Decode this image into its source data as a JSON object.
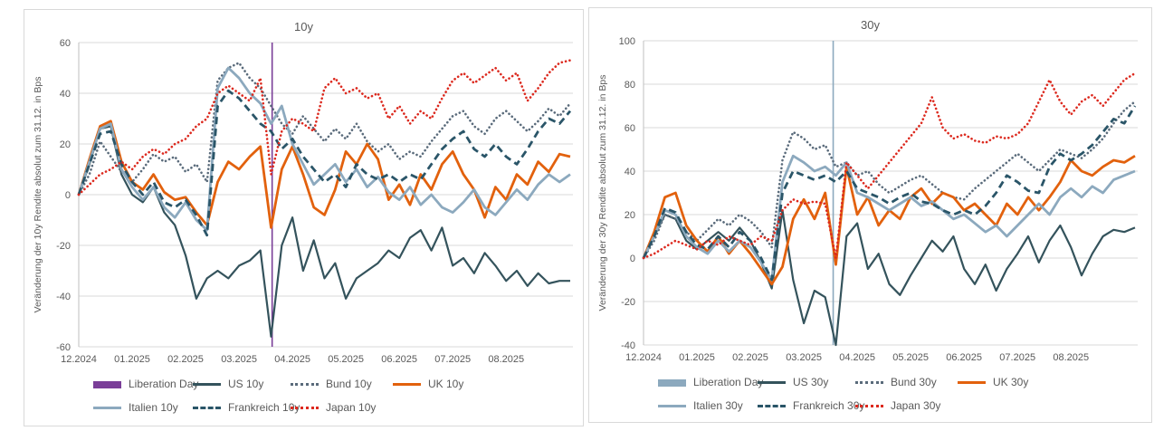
{
  "chart_data": [
    {
      "type": "line",
      "title": "10y",
      "ylabel": "Veränderung der 10y Rendite absolut zum 31.12. in Bps",
      "x_tick_labels": [
        "12.2024",
        "01.2025",
        "02.2025",
        "03.2025",
        "04.2025",
        "05.2025",
        "06.2025",
        "07.2025",
        "08.2025"
      ],
      "y_tick_labels": [
        60,
        40,
        20,
        0,
        -20,
        -40,
        -60
      ],
      "ylim": [
        -60,
        60
      ],
      "x_start": 0,
      "x_step": 0.2,
      "x_max": 9.25,
      "grid": "horizontal",
      "vline": {
        "name": "Liberation Day",
        "x": 3.62,
        "color": "#7A3E98"
      },
      "series": [
        {
          "name": "US 10y",
          "color": "#34535C",
          "style": "solid",
          "width": 2.2,
          "values": [
            0,
            12,
            26,
            27,
            8,
            0,
            -3,
            3,
            -7,
            -12,
            -24,
            -41,
            -33,
            -30,
            -33,
            -28,
            -26,
            -22,
            -56,
            -20,
            -9,
            -30,
            -18,
            -33,
            -27,
            -41,
            -33,
            -30,
            -27,
            -22,
            -25,
            -17,
            -14,
            -22,
            -13,
            -28,
            -25,
            -31,
            -23,
            -28,
            -34,
            -30,
            -36,
            -31,
            -35,
            -34,
            -34
          ]
        },
        {
          "name": "Bund 10y",
          "color": "#5A6B7B",
          "style": "dotted",
          "width": 2.6,
          "values": [
            0,
            8,
            21,
            15,
            9,
            5,
            10,
            16,
            13,
            15,
            9,
            12,
            5,
            45,
            50,
            52,
            46,
            42,
            35,
            28,
            24,
            31,
            26,
            21,
            26,
            22,
            28,
            21,
            17,
            20,
            14,
            17,
            15,
            21,
            26,
            31,
            33,
            27,
            24,
            30,
            33,
            29,
            25,
            29,
            34,
            31,
            36
          ]
        },
        {
          "name": "UK 10y",
          "color": "#E2610D",
          "style": "solid",
          "width": 2.8,
          "values": [
            0,
            14,
            27,
            29,
            13,
            5,
            2,
            8,
            1,
            -2,
            -1,
            -7,
            -12,
            5,
            13,
            10,
            15,
            19,
            -13,
            10,
            19,
            8,
            -5,
            -8,
            2,
            17,
            12,
            20,
            14,
            -2,
            4,
            -4,
            8,
            2,
            12,
            17,
            8,
            2,
            -9,
            3,
            -2,
            8,
            4,
            13,
            9,
            16,
            15
          ]
        },
        {
          "name": "Italien 10y",
          "color": "#8CA9BE",
          "style": "solid",
          "width": 2.8,
          "values": [
            0,
            13,
            26,
            28,
            10,
            3,
            -2,
            3,
            -5,
            -9,
            -3,
            -10,
            -14,
            42,
            50,
            46,
            40,
            36,
            28,
            35,
            20,
            12,
            4,
            8,
            12,
            5,
            10,
            3,
            7,
            1,
            -2,
            3,
            -4,
            0,
            -5,
            -7,
            -3,
            2,
            -5,
            -8,
            -3,
            2,
            -2,
            4,
            8,
            5,
            8
          ]
        },
        {
          "name": "Frankreich 10y",
          "color": "#2A5568",
          "style": "dashed",
          "width": 2.8,
          "values": [
            0,
            12,
            24,
            25,
            12,
            5,
            0,
            5,
            -3,
            -5,
            -2,
            -8,
            -16,
            35,
            41,
            38,
            33,
            28,
            25,
            18,
            22,
            15,
            10,
            5,
            8,
            3,
            12,
            8,
            6,
            8,
            5,
            8,
            6,
            12,
            18,
            22,
            25,
            18,
            15,
            20,
            15,
            12,
            18,
            25,
            30,
            28,
            33
          ]
        },
        {
          "name": "Japan 10y",
          "color": "#DC291E",
          "style": "dotted",
          "width": 2.6,
          "values": [
            0,
            4,
            8,
            10,
            13,
            10,
            15,
            18,
            16,
            20,
            22,
            27,
            30,
            40,
            43,
            40,
            37,
            46,
            8,
            25,
            30,
            28,
            25,
            42,
            46,
            40,
            42,
            38,
            40,
            30,
            35,
            28,
            33,
            30,
            38,
            45,
            48,
            44,
            47,
            50,
            45,
            48,
            37,
            42,
            48,
            52,
            53
          ]
        }
      ],
      "legend": [
        [
          {
            "label": "Liberation Day",
            "color": "#7A3E98",
            "style": "bar"
          },
          {
            "label": "US 10y",
            "color": "#34535C",
            "style": "solid"
          },
          {
            "label": "Bund 10y",
            "color": "#5A6B7B",
            "style": "dotted"
          },
          {
            "label": "UK 10y",
            "color": "#E2610D",
            "style": "solid"
          }
        ],
        [
          {
            "label": "Italien 10y",
            "color": "#8CA9BE",
            "style": "solid"
          },
          {
            "label": "Frankreich 10y",
            "color": "#2A5568",
            "style": "dashed"
          },
          {
            "label": "Japan 10y",
            "color": "#DC291E",
            "style": "dotted"
          }
        ]
      ]
    },
    {
      "type": "line",
      "title": "30y",
      "ylabel": "Veränderung der 30y Rendite absolut zum 31.12. in Bps",
      "x_tick_labels": [
        "12.2024",
        "01.2025",
        "02.2025",
        "03.2025",
        "04.2025",
        "05.2025",
        "06.2025",
        "07.2025",
        "08.2025"
      ],
      "y_tick_labels": [
        100,
        80,
        60,
        40,
        20,
        0,
        -20,
        -40
      ],
      "ylim": [
        -40,
        100
      ],
      "x_start": 0,
      "x_step": 0.2,
      "x_max": 9.25,
      "grid": "horizontal",
      "vline": {
        "name": "Liberation Day",
        "x": 3.55,
        "color": "#8CA9BE"
      },
      "series": [
        {
          "name": "US 30y",
          "color": "#34535C",
          "style": "solid",
          "width": 2.2,
          "values": [
            0,
            10,
            20,
            18,
            8,
            4,
            8,
            12,
            8,
            14,
            8,
            -2,
            -14,
            22,
            -10,
            -30,
            -15,
            -18,
            -40,
            10,
            16,
            -5,
            2,
            -12,
            -17,
            -8,
            0,
            8,
            3,
            10,
            -5,
            -12,
            -3,
            -15,
            -5,
            2,
            10,
            -2,
            8,
            15,
            5,
            -8,
            2,
            10,
            13,
            12,
            14
          ]
        },
        {
          "name": "Bund 30y",
          "color": "#5A6B7B",
          "style": "dotted",
          "width": 2.6,
          "values": [
            0,
            8,
            20,
            18,
            12,
            8,
            13,
            18,
            15,
            20,
            17,
            12,
            5,
            45,
            58,
            55,
            50,
            52,
            42,
            44,
            38,
            40,
            34,
            30,
            33,
            36,
            38,
            34,
            30,
            28,
            27,
            32,
            36,
            40,
            44,
            48,
            44,
            40,
            45,
            50,
            48,
            46,
            50,
            55,
            62,
            68,
            72
          ]
        },
        {
          "name": "UK 30y",
          "color": "#E2610D",
          "style": "solid",
          "width": 2.8,
          "values": [
            0,
            12,
            28,
            30,
            15,
            8,
            3,
            10,
            2,
            8,
            2,
            -5,
            -12,
            -4,
            18,
            27,
            18,
            30,
            -3,
            42,
            20,
            28,
            15,
            22,
            18,
            28,
            32,
            25,
            30,
            28,
            22,
            25,
            20,
            15,
            25,
            20,
            28,
            22,
            28,
            35,
            45,
            40,
            38,
            42,
            45,
            44,
            47
          ]
        },
        {
          "name": "Italien 30y",
          "color": "#8CA9BE",
          "style": "solid",
          "width": 2.8,
          "values": [
            0,
            10,
            22,
            20,
            10,
            5,
            2,
            8,
            3,
            8,
            5,
            -2,
            -10,
            35,
            47,
            44,
            40,
            42,
            38,
            44,
            30,
            28,
            25,
            22,
            25,
            28,
            24,
            26,
            22,
            18,
            20,
            16,
            12,
            15,
            10,
            15,
            20,
            25,
            20,
            28,
            32,
            28,
            33,
            30,
            36,
            38,
            40
          ]
        },
        {
          "name": "Frankreich 30y",
          "color": "#2A5568",
          "style": "dashed",
          "width": 2.8,
          "values": [
            0,
            10,
            23,
            21,
            12,
            6,
            4,
            10,
            5,
            12,
            8,
            0,
            -10,
            30,
            40,
            38,
            36,
            38,
            35,
            40,
            32,
            30,
            28,
            25,
            28,
            30,
            26,
            25,
            22,
            20,
            22,
            20,
            24,
            30,
            38,
            35,
            31,
            30,
            42,
            48,
            45,
            48,
            52,
            58,
            64,
            62,
            70
          ]
        },
        {
          "name": "Japan 30y",
          "color": "#DC291E",
          "style": "dotted",
          "width": 2.6,
          "values": [
            0,
            2,
            5,
            8,
            6,
            4,
            8,
            6,
            10,
            8,
            6,
            10,
            8,
            22,
            27,
            25,
            26,
            25,
            0,
            44,
            38,
            32,
            38,
            44,
            50,
            56,
            62,
            74,
            60,
            55,
            57,
            54,
            53,
            56,
            55,
            57,
            62,
            72,
            82,
            72,
            66,
            72,
            75,
            70,
            76,
            82,
            85
          ]
        }
      ],
      "legend": [
        [
          {
            "label": "Liberation Day",
            "color": "#8CA9BE",
            "style": "bar"
          },
          {
            "label": "US 30y",
            "color": "#34535C",
            "style": "solid"
          },
          {
            "label": "Bund 30y",
            "color": "#5A6B7B",
            "style": "dotted"
          },
          {
            "label": "UK 30y",
            "color": "#E2610D",
            "style": "solid"
          }
        ],
        [
          {
            "label": "Italien 30y",
            "color": "#8CA9BE",
            "style": "solid"
          },
          {
            "label": "Frankreich 30y",
            "color": "#2A5568",
            "style": "dashed"
          },
          {
            "label": "Japan 30y",
            "color": "#DC291E",
            "style": "dotted"
          }
        ]
      ]
    }
  ],
  "theme": {
    "grid_color": "#d9d9d9",
    "axis_line_color": "#bfbfbf",
    "text_color": "#595959",
    "panel_border_color": "#d9d9d9"
  }
}
